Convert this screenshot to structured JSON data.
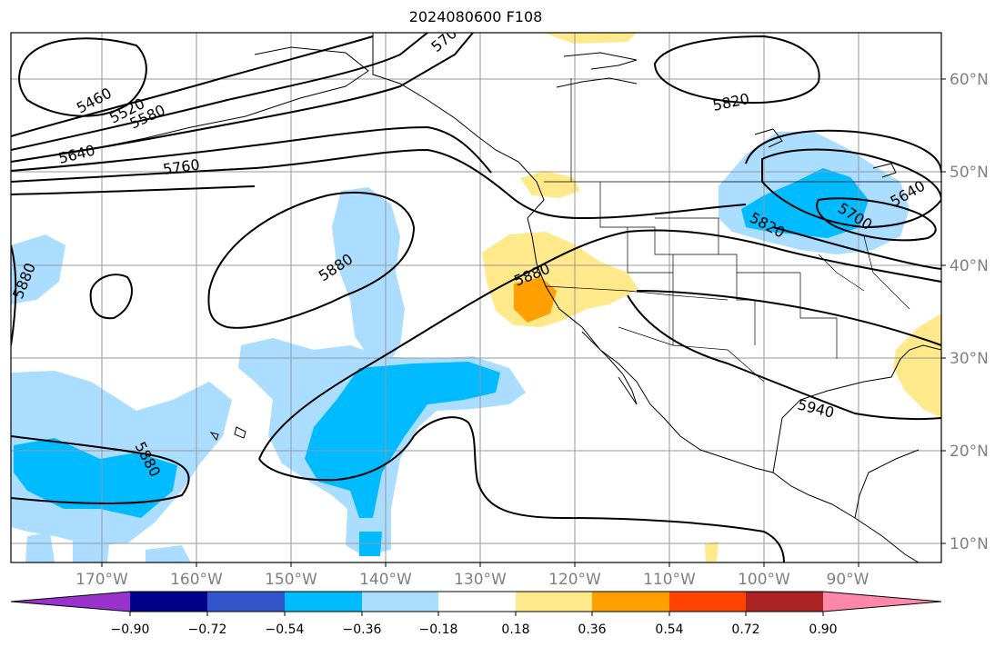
{
  "title": "2024080600 F108",
  "map": {
    "lon_labels": [
      "170°W",
      "160°W",
      "150°W",
      "140°W",
      "130°W",
      "120°W",
      "110°W",
      "100°W",
      "90°W"
    ],
    "lat_labels": [
      "60°N",
      "50°N",
      "40°N",
      "30°N",
      "20°N",
      "10°N"
    ],
    "contour_labels": [
      "5460",
      "5520",
      "5580",
      "5640",
      "5760",
      "570",
      "5820",
      "5880",
      "5880",
      "5880",
      "5880",
      "5820",
      "5700",
      "5640",
      "5940"
    ]
  },
  "colorbar": {
    "ticks": [
      "−0.90",
      "−0.72",
      "−0.54",
      "−0.36",
      "−0.18",
      "0.18",
      "0.36",
      "0.54",
      "0.72",
      "0.90"
    ],
    "colors": [
      "#9933cc",
      "#000088",
      "#3355cc",
      "#00bbff",
      "#aaddff",
      "#ffffff",
      "#ffe98a",
      "#ffa000",
      "#ff4400",
      "#aa2222",
      "#ff88aa"
    ]
  }
}
